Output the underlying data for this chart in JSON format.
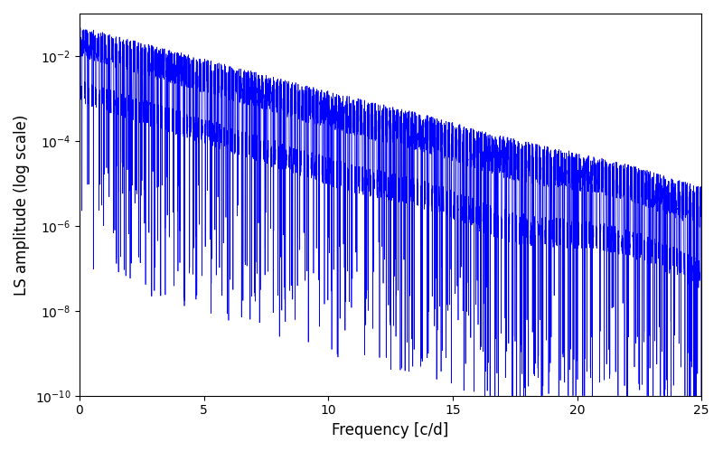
{
  "title": "",
  "xlabel": "Frequency [c/d]",
  "ylabel": "LS amplitude (log scale)",
  "line_color": "#0000FF",
  "line_width": 0.5,
  "xlim": [
    0,
    25
  ],
  "ylim": [
    1e-10,
    0.1
  ],
  "xticks": [
    0,
    5,
    10,
    15,
    20,
    25
  ],
  "figsize": [
    8.0,
    5.0
  ],
  "dpi": 100,
  "seed": 12345,
  "n_points": 8000,
  "freq_max": 25.0,
  "background_color": "#ffffff"
}
